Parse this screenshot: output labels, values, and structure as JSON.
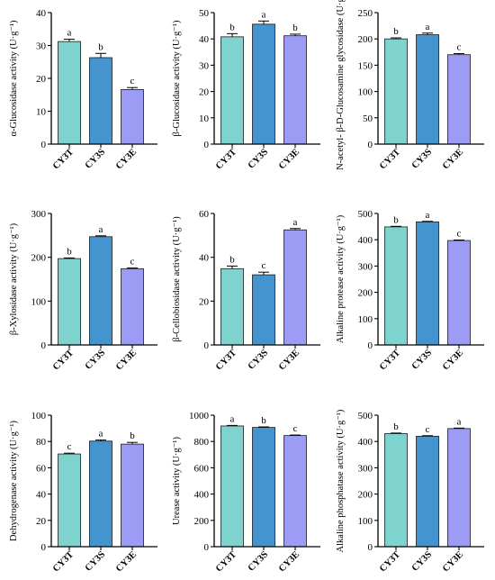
{
  "colors": {
    "CY3T": "#7fd3ce",
    "CY3S": "#4495cf",
    "CY3E": "#9d9cf4",
    "axis": "#000000",
    "bar_edge": "#1a1a1a"
  },
  "chart_data": [
    {
      "type": "bar",
      "panel": "alpha-glucosidase",
      "ylabel": "α-Glucosidase activity (U·g⁻¹)",
      "categories": [
        "CY3T",
        "CY3S",
        "CY3E"
      ],
      "values": [
        31.2,
        26.3,
        16.6
      ],
      "errors": [
        0.7,
        1.3,
        0.6
      ],
      "letters": [
        "a",
        "b",
        "c"
      ],
      "ylim": [
        0,
        40
      ],
      "yticks": [
        0,
        10,
        20,
        30,
        40
      ],
      "grid": false,
      "legend": "none"
    },
    {
      "type": "bar",
      "panel": "beta-glucosidase",
      "ylabel": "β-Glucosidase activity (U·g⁻¹)",
      "categories": [
        "CY3T",
        "CY3S",
        "CY3E"
      ],
      "values": [
        40.8,
        45.6,
        41.2
      ],
      "errors": [
        1.2,
        1.2,
        0.6
      ],
      "letters": [
        "b",
        "a",
        "b"
      ],
      "ylim": [
        0,
        50
      ],
      "yticks": [
        0,
        10,
        20,
        30,
        40,
        50
      ],
      "grid": false,
      "legend": "none"
    },
    {
      "type": "bar",
      "panel": "nag",
      "ylabel": "N-acetyl- β-D-Glucosamine glycosidase (U·g⁻¹)",
      "categories": [
        "CY3T",
        "CY3S",
        "CY3E"
      ],
      "values": [
        200,
        208,
        170
      ],
      "errors": [
        2,
        3,
        2
      ],
      "letters": [
        "b",
        "a",
        "c"
      ],
      "ylim": [
        0,
        250
      ],
      "yticks": [
        0,
        50,
        100,
        150,
        200,
        250
      ],
      "grid": false,
      "legend": "none"
    },
    {
      "type": "bar",
      "panel": "beta-xylosidase",
      "ylabel": "β-Xylosidase activity (U·g⁻¹)",
      "categories": [
        "CY3T",
        "CY3S",
        "CY3E"
      ],
      "values": [
        197,
        247,
        174
      ],
      "errors": [
        1.5,
        2,
        1.5
      ],
      "letters": [
        "b",
        "a",
        "c"
      ],
      "ylim": [
        0,
        300
      ],
      "yticks": [
        0,
        100,
        200,
        300
      ],
      "grid": false,
      "legend": "none"
    },
    {
      "type": "bar",
      "panel": "beta-cellobiosidase",
      "ylabel": "β-Cellobiosidase activity (U·g⁻¹)",
      "categories": [
        "CY3T",
        "CY3S",
        "CY3E"
      ],
      "values": [
        34.8,
        32.0,
        52.5
      ],
      "errors": [
        1.2,
        1.2,
        0.6
      ],
      "letters": [
        "b",
        "c",
        "a"
      ],
      "ylim": [
        0,
        60
      ],
      "yticks": [
        0,
        20,
        40,
        60
      ],
      "grid": false,
      "legend": "none"
    },
    {
      "type": "bar",
      "panel": "alkaline-protease",
      "ylabel": "Alkaline protease activity (U·g⁻¹)",
      "categories": [
        "CY3T",
        "CY3S",
        "CY3E"
      ],
      "values": [
        449,
        468,
        397
      ],
      "errors": [
        2,
        2,
        2
      ],
      "letters": [
        "b",
        "a",
        "c"
      ],
      "ylim": [
        0,
        500
      ],
      "yticks": [
        0,
        100,
        200,
        300,
        400,
        500
      ],
      "grid": false,
      "legend": "none"
    },
    {
      "type": "bar",
      "panel": "dehydrogenase",
      "ylabel": "Dehydrogenase activity (U·g⁻¹)",
      "categories": [
        "CY3T",
        "CY3S",
        "CY3E"
      ],
      "values": [
        70.5,
        80.3,
        78.0
      ],
      "errors": [
        0.6,
        0.8,
        1.3
      ],
      "letters": [
        "c",
        "a",
        "b"
      ],
      "ylim": [
        0,
        100
      ],
      "yticks": [
        0,
        20,
        40,
        60,
        80,
        100
      ],
      "grid": false,
      "legend": "none"
    },
    {
      "type": "bar",
      "panel": "urease",
      "ylabel": "Urease activity (U·g⁻¹)",
      "categories": [
        "CY3T",
        "CY3S",
        "CY3E"
      ],
      "values": [
        918,
        907,
        845
      ],
      "errors": [
        4,
        4,
        4
      ],
      "letters": [
        "a",
        "b",
        "c"
      ],
      "ylim": [
        0,
        1000
      ],
      "yticks": [
        0,
        200,
        400,
        600,
        800,
        1000
      ],
      "grid": false,
      "legend": "none"
    },
    {
      "type": "bar",
      "panel": "alkaline-phosphatase",
      "ylabel": "Alkaline phosphatase activity (U·g⁻¹)",
      "categories": [
        "CY3T",
        "CY3S",
        "CY3E"
      ],
      "values": [
        430,
        420,
        449
      ],
      "errors": [
        2,
        2,
        2
      ],
      "letters": [
        "b",
        "c",
        "a"
      ],
      "ylim": [
        0,
        500
      ],
      "yticks": [
        0,
        100,
        200,
        300,
        400,
        500
      ],
      "grid": false,
      "legend": "none"
    }
  ]
}
